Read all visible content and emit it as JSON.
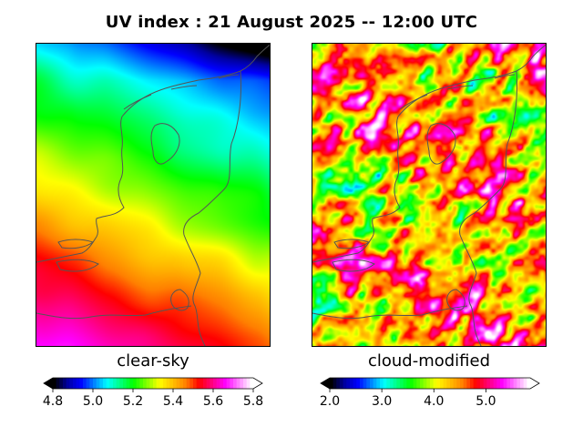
{
  "title": "UV index :  21 August 2025  --  12:00 UTC",
  "panels": [
    {
      "label": "clear-sky",
      "colorbar": {
        "min": 4.8,
        "max": 5.8,
        "ticks": [
          "4.8",
          "5.0",
          "5.2",
          "5.4",
          "5.6",
          "5.8"
        ],
        "tick_values": [
          4.8,
          5.0,
          5.2,
          5.4,
          5.6,
          5.8
        ],
        "extend": "both",
        "colormap": "gist_ncar-like"
      }
    },
    {
      "label": "cloud-modified",
      "colorbar": {
        "min": 2.0,
        "max": 5.85,
        "ticks": [
          "2.0",
          "3.0",
          "4.0",
          "5.0"
        ],
        "tick_values": [
          2.0,
          3.0,
          4.0,
          5.0
        ],
        "extend": "both",
        "colormap": "gist_ncar-like"
      }
    }
  ],
  "colors": {
    "cmap_stops": [
      "#000000",
      "#0000a0",
      "#0000ff",
      "#0080ff",
      "#00ffff",
      "#00ff80",
      "#00ff00",
      "#80ff00",
      "#ffff00",
      "#ffc000",
      "#ff8000",
      "#ff0000",
      "#ff0080",
      "#ff00ff",
      "#ff80ff",
      "#ffffff"
    ],
    "coastline": "#555555"
  },
  "map": {
    "region": "Netherlands",
    "features": [
      "coastline",
      "national-border"
    ]
  }
}
